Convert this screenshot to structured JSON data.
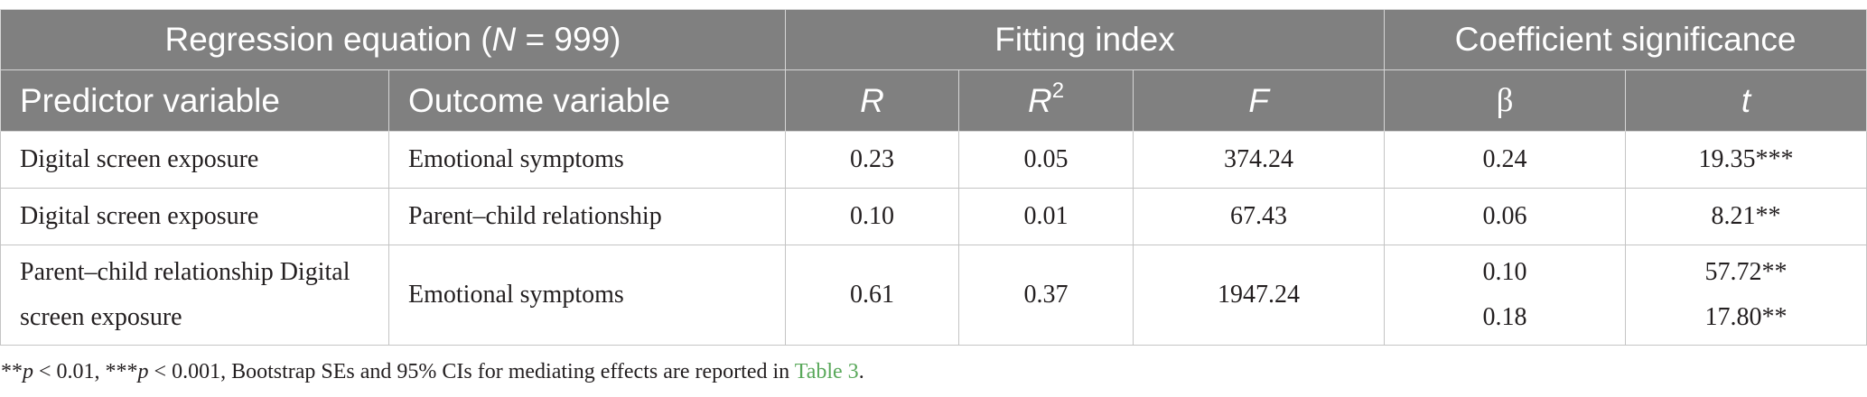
{
  "table": {
    "group_headers": {
      "regression": {
        "prefix": "Regression equation (",
        "symbol": "N",
        "suffix": " = 999)"
      },
      "fitting": "Fitting index",
      "coefficient": "Coefficient significance"
    },
    "columns": {
      "predictor": "Predictor variable",
      "outcome": "Outcome variable",
      "r": "R",
      "r2_base": "R",
      "r2_sup": "2",
      "f": "F",
      "beta": "β",
      "t": "t"
    },
    "rows": [
      {
        "predictor": "Digital screen exposure",
        "outcome": "Emotional symptoms",
        "r": "0.23",
        "r2": "0.05",
        "f": "374.24",
        "beta": [
          "0.24"
        ],
        "t": [
          "19.35***"
        ]
      },
      {
        "predictor": "Digital screen exposure",
        "outcome": "Parent–child relationship",
        "r": "0.10",
        "r2": "0.01",
        "f": "67.43",
        "beta": [
          "0.06"
        ],
        "t": [
          "8.21**"
        ]
      },
      {
        "predictor": "Parent–child relationship Digital screen exposure",
        "outcome": "Emotional symptoms",
        "r": "0.61",
        "r2": "0.37",
        "f": "1947.24",
        "beta": [
          "0.10",
          "0.18"
        ],
        "t": [
          "57.72**",
          "17.80**"
        ]
      }
    ]
  },
  "footnote": {
    "segments": [
      "**",
      "p",
      " < 0.01, ***",
      "p",
      " < 0.001, Bootstrap SEs and 95% CIs for mediating effects are reported in ",
      "Table 3",
      "."
    ]
  },
  "colors": {
    "header_background": "#808080",
    "header_text": "#ffffff",
    "body_text": "#231f20",
    "border": "#c4c4c4",
    "header_divider": "#d6d6d6",
    "link": "#59a85a"
  }
}
